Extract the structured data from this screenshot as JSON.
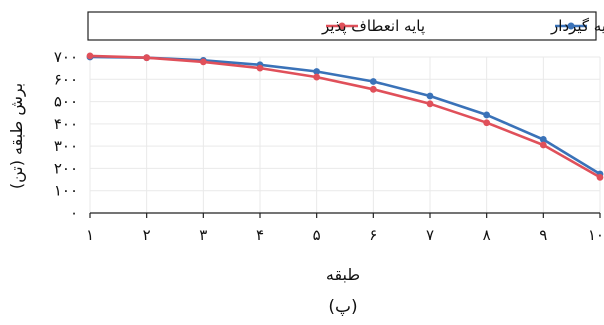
{
  "chart_data": {
    "type": "line",
    "xlabel": "طبقه",
    "ylabel": "برش طبقه (تن)",
    "caption": "(پ)",
    "x": [
      1,
      2,
      3,
      4,
      5,
      6,
      7,
      8,
      9,
      10
    ],
    "x_tick_labels": [
      "۱",
      "۲",
      "۳",
      "۴",
      "۵",
      "۶",
      "۷",
      "۸",
      "۹",
      "۱۰"
    ],
    "yticks": [
      0,
      100,
      200,
      300,
      400,
      500,
      600,
      700
    ],
    "y_tick_labels": [
      "۰",
      "۱۰۰",
      "۲۰۰",
      "۳۰۰",
      "۴۰۰",
      "۵۰۰",
      "۶۰۰",
      "۷۰۰"
    ],
    "xlim": [
      1,
      10
    ],
    "ylim": [
      0,
      700
    ],
    "grid": true,
    "legend_position": "top",
    "series": [
      {
        "name": "پایه گیردار",
        "color": "#3a72b8",
        "values": [
          700,
          697,
          685,
          665,
          635,
          590,
          525,
          440,
          330,
          175
        ]
      },
      {
        "name": "پایه انعطاف پذیر",
        "color": "#e0505a",
        "values": [
          705,
          697,
          678,
          650,
          610,
          555,
          490,
          405,
          305,
          160
        ]
      }
    ]
  }
}
